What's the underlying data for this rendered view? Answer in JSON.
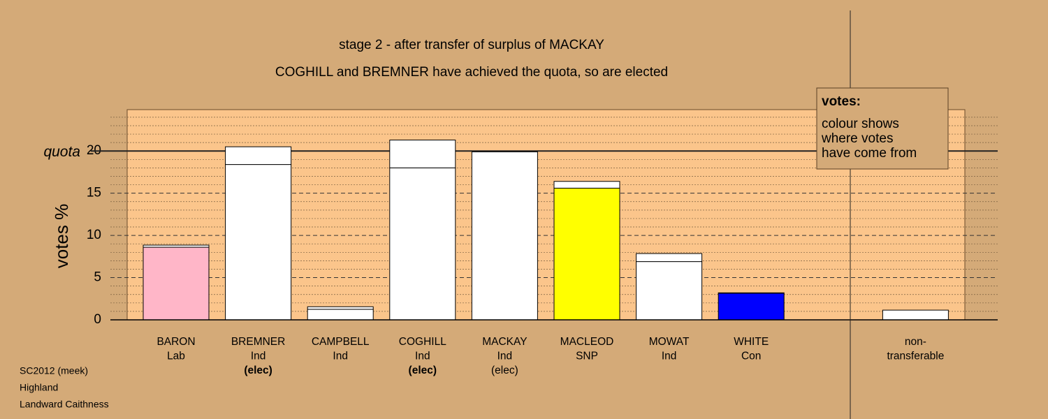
{
  "chart_data": {
    "type": "stacked-bar",
    "title": "stage 2 - after transfer of surplus of MACKAY",
    "subtitle": "COGHILL and BREMNER have achieved the quota, so are elected",
    "y_label": "votes %",
    "categories": [
      [
        "BARON",
        "Lab"
      ],
      [
        "BREMNER",
        "Ind",
        "(elec)"
      ],
      [
        "CAMPBELL",
        "Ind"
      ],
      [
        "COGHILL",
        "Ind",
        "(elec)"
      ],
      [
        "MACKAY",
        "Ind",
        "(elec)"
      ],
      [
        "MACLEOD",
        "SNP"
      ],
      [
        "MOWAT",
        "Ind"
      ],
      [
        "WHITE",
        "Con"
      ],
      null,
      [
        "non-",
        "transferable"
      ]
    ],
    "newly_elected": [
      false,
      true,
      false,
      true,
      false,
      false,
      false,
      false,
      false,
      false
    ],
    "series": [
      {
        "colors": [
          "#ffb6c8",
          "#ffffff",
          "#ffffff",
          "#ffffff",
          "#ffffff",
          "#ffff00",
          "#ffffff",
          "#0000ff",
          null,
          "#ffffff"
        ],
        "values": [
          8.6,
          18.4,
          1.25,
          18.0,
          19.9,
          15.6,
          6.9,
          3.15,
          null,
          1.15
        ]
      },
      {
        "color": "#ffffff",
        "values": [
          0.25,
          2.1,
          0.3,
          3.3,
          0,
          0.8,
          0.95,
          0.05,
          null,
          0
        ]
      }
    ],
    "quota": 20,
    "quota_label": "quota",
    "ylim": [
      0,
      24.9
    ],
    "yticks": [
      0,
      5,
      10,
      15,
      20
    ],
    "minor_grid_step": 1,
    "grid": true,
    "legend_title": "votes:",
    "legend_lines": [
      "colour shows",
      "where votes",
      "have come from"
    ],
    "footer": [
      "SC2012 (meek)",
      "Highland",
      "Landward Caithness"
    ]
  }
}
